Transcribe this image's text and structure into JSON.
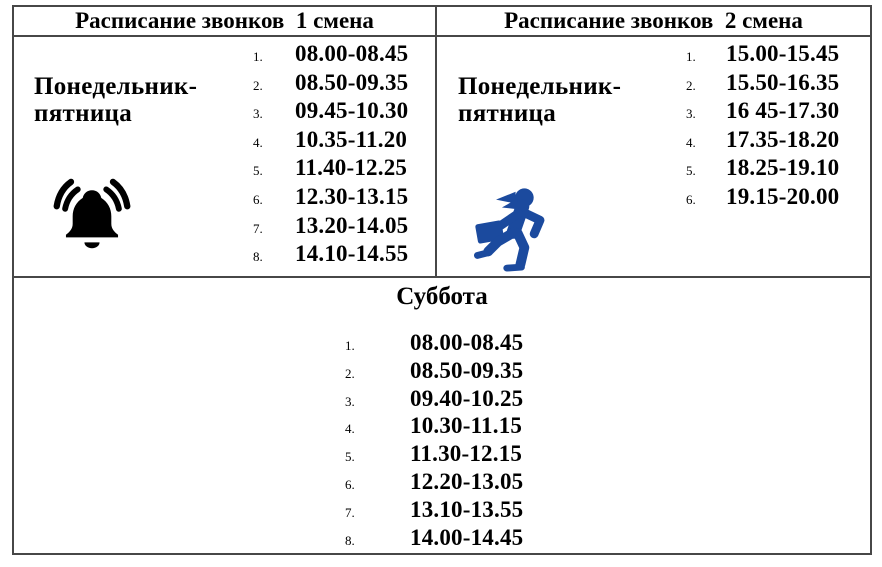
{
  "meta": {
    "accent_blue": "#1b4a9e",
    "border_color": "#474747"
  },
  "shift1": {
    "header": "Расписание звонков  1 смена",
    "days": [
      "Понедельник-",
      "пятница"
    ],
    "icon": "ringing-bell",
    "lessons": [
      {
        "n": "1.",
        "time": "08.00-08.45"
      },
      {
        "n": "2.",
        "time": "08.50-09.35"
      },
      {
        "n": "3.",
        "time": "09.45-10.30"
      },
      {
        "n": "4.",
        "time": "10.35-11.20"
      },
      {
        "n": "5.",
        "time": "11.40-12.25"
      },
      {
        "n": "6.",
        "time": "12.30-13.15"
      },
      {
        "n": "7.",
        "time": "13.20-14.05"
      },
      {
        "n": "8.",
        "time": "14.10-14.55"
      }
    ]
  },
  "shift2": {
    "header": "Расписание звонков  2 смена",
    "days": [
      "Понедельник-",
      "пятница"
    ],
    "icon": "running-student",
    "lessons": [
      {
        "n": "1.",
        "time": "15.00-15.45"
      },
      {
        "n": "2.",
        "time": "15.50-16.35"
      },
      {
        "n": "3.",
        "time": "16 45-17.30"
      },
      {
        "n": "4.",
        "time": "17.35-18.20"
      },
      {
        "n": "5.",
        "time": "18.25-19.10"
      },
      {
        "n": "6.",
        "time": "19.15-20.00"
      }
    ]
  },
  "saturday": {
    "header": "Суббота",
    "lessons": [
      {
        "n": "1.",
        "time": "08.00-08.45"
      },
      {
        "n": "2.",
        "time": "08.50-09.35"
      },
      {
        "n": "3.",
        "time": "09.40-10.25"
      },
      {
        "n": "4.",
        "time": "10.30-11.15"
      },
      {
        "n": "5.",
        "time": "11.30-12.15"
      },
      {
        "n": "6.",
        "time": "12.20-13.05"
      },
      {
        "n": "7.",
        "time": "13.10-13.55"
      },
      {
        "n": "8.",
        "time": "14.00-14.45"
      }
    ]
  }
}
